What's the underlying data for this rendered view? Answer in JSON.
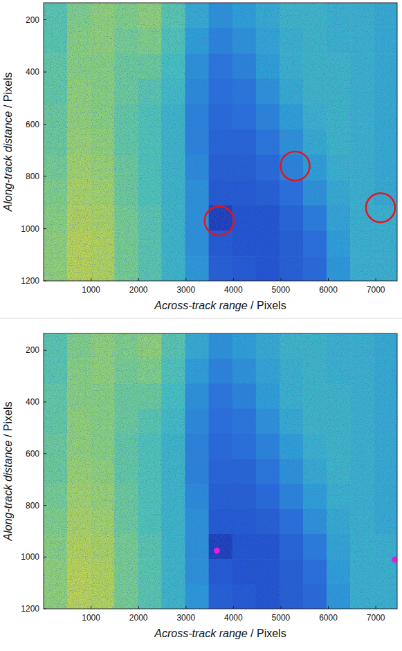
{
  "chart_data": [
    {
      "type": "heatmap",
      "x_label": "Across-track range / Pixels",
      "y_label": "Along-track distance / Pixels",
      "xlim": [
        0,
        7450
      ],
      "ylim": [
        135,
        1200
      ],
      "xticks": [
        1000,
        2000,
        3000,
        4000,
        5000,
        6000,
        7000
      ],
      "yticks": [
        200,
        400,
        600,
        800,
        1000,
        1200
      ],
      "x_edges": [
        0,
        497,
        994,
        1491,
        1988,
        2485,
        2982,
        3479,
        3976,
        4473,
        4970,
        5467,
        5964,
        6461,
        6958,
        7450
      ],
      "y_edges": [
        135,
        232,
        329,
        426,
        523,
        620,
        717,
        814,
        911,
        1008,
        1105,
        1200
      ],
      "color_range": [
        0.2,
        0.7
      ],
      "cells": [
        [
          0.5,
          0.54,
          0.56,
          0.54,
          0.56,
          0.5,
          0.44,
          0.4,
          0.42,
          0.44,
          0.46,
          0.46,
          0.45,
          0.45,
          0.44
        ],
        [
          0.5,
          0.55,
          0.56,
          0.53,
          0.54,
          0.49,
          0.42,
          0.38,
          0.4,
          0.43,
          0.45,
          0.46,
          0.45,
          0.45,
          0.44
        ],
        [
          0.51,
          0.55,
          0.55,
          0.52,
          0.52,
          0.48,
          0.4,
          0.36,
          0.38,
          0.42,
          0.45,
          0.46,
          0.46,
          0.45,
          0.44
        ],
        [
          0.51,
          0.56,
          0.55,
          0.52,
          0.5,
          0.47,
          0.39,
          0.35,
          0.36,
          0.4,
          0.44,
          0.46,
          0.46,
          0.45,
          0.44
        ],
        [
          0.52,
          0.56,
          0.55,
          0.51,
          0.49,
          0.46,
          0.38,
          0.34,
          0.35,
          0.38,
          0.42,
          0.45,
          0.46,
          0.45,
          0.44
        ],
        [
          0.52,
          0.57,
          0.56,
          0.51,
          0.49,
          0.46,
          0.38,
          0.33,
          0.33,
          0.36,
          0.4,
          0.44,
          0.46,
          0.45,
          0.44
        ],
        [
          0.53,
          0.58,
          0.57,
          0.52,
          0.49,
          0.46,
          0.39,
          0.32,
          0.32,
          0.34,
          0.38,
          0.42,
          0.45,
          0.45,
          0.44
        ],
        [
          0.54,
          0.59,
          0.58,
          0.52,
          0.49,
          0.46,
          0.4,
          0.31,
          0.31,
          0.32,
          0.35,
          0.4,
          0.44,
          0.45,
          0.44
        ],
        [
          0.55,
          0.6,
          0.59,
          0.53,
          0.5,
          0.46,
          0.4,
          0.26,
          0.3,
          0.3,
          0.33,
          0.37,
          0.43,
          0.45,
          0.45
        ],
        [
          0.56,
          0.61,
          0.6,
          0.53,
          0.5,
          0.46,
          0.4,
          0.31,
          0.3,
          0.3,
          0.32,
          0.35,
          0.42,
          0.45,
          0.45
        ],
        [
          0.56,
          0.61,
          0.6,
          0.53,
          0.5,
          0.46,
          0.41,
          0.32,
          0.31,
          0.3,
          0.32,
          0.34,
          0.41,
          0.45,
          0.45
        ]
      ],
      "series": [
        {
          "type": "scatter",
          "marker": "ring",
          "color": "#e8141c",
          "x": [
            3700,
            5300,
            7100
          ],
          "values": [
            970,
            760,
            920
          ]
        }
      ]
    },
    {
      "type": "heatmap",
      "x_label": "Across-track range / Pixels",
      "y_label": "Along-track distance / Pixels",
      "xlim": [
        0,
        7450
      ],
      "ylim": [
        135,
        1200
      ],
      "xticks": [
        1000,
        2000,
        3000,
        4000,
        5000,
        6000,
        7000
      ],
      "yticks": [
        200,
        400,
        600,
        800,
        1000,
        1200
      ],
      "x_edges": [
        0,
        497,
        994,
        1491,
        1988,
        2485,
        2982,
        3479,
        3976,
        4473,
        4970,
        5467,
        5964,
        6461,
        6958,
        7450
      ],
      "y_edges": [
        135,
        232,
        329,
        426,
        523,
        620,
        717,
        814,
        911,
        1008,
        1105,
        1200
      ],
      "color_range": [
        0.2,
        0.7
      ],
      "cells": [
        [
          0.5,
          0.54,
          0.56,
          0.54,
          0.56,
          0.5,
          0.44,
          0.4,
          0.42,
          0.44,
          0.46,
          0.46,
          0.45,
          0.45,
          0.44
        ],
        [
          0.5,
          0.55,
          0.56,
          0.53,
          0.54,
          0.49,
          0.42,
          0.38,
          0.4,
          0.43,
          0.45,
          0.46,
          0.45,
          0.45,
          0.44
        ],
        [
          0.51,
          0.55,
          0.55,
          0.52,
          0.52,
          0.48,
          0.4,
          0.36,
          0.38,
          0.42,
          0.45,
          0.46,
          0.46,
          0.45,
          0.44
        ],
        [
          0.51,
          0.56,
          0.55,
          0.52,
          0.5,
          0.47,
          0.39,
          0.35,
          0.36,
          0.4,
          0.44,
          0.46,
          0.46,
          0.45,
          0.44
        ],
        [
          0.52,
          0.56,
          0.55,
          0.51,
          0.49,
          0.46,
          0.38,
          0.34,
          0.35,
          0.38,
          0.42,
          0.45,
          0.46,
          0.45,
          0.44
        ],
        [
          0.52,
          0.57,
          0.56,
          0.51,
          0.49,
          0.46,
          0.38,
          0.33,
          0.33,
          0.36,
          0.4,
          0.44,
          0.46,
          0.45,
          0.44
        ],
        [
          0.53,
          0.58,
          0.57,
          0.52,
          0.49,
          0.46,
          0.39,
          0.32,
          0.32,
          0.34,
          0.38,
          0.42,
          0.45,
          0.45,
          0.44
        ],
        [
          0.54,
          0.59,
          0.58,
          0.52,
          0.49,
          0.46,
          0.4,
          0.31,
          0.31,
          0.32,
          0.35,
          0.4,
          0.44,
          0.45,
          0.44
        ],
        [
          0.55,
          0.6,
          0.59,
          0.53,
          0.5,
          0.46,
          0.4,
          0.26,
          0.3,
          0.3,
          0.33,
          0.37,
          0.43,
          0.45,
          0.45
        ],
        [
          0.56,
          0.61,
          0.6,
          0.53,
          0.5,
          0.46,
          0.4,
          0.31,
          0.3,
          0.3,
          0.32,
          0.35,
          0.42,
          0.45,
          0.45
        ],
        [
          0.56,
          0.61,
          0.6,
          0.53,
          0.5,
          0.46,
          0.41,
          0.32,
          0.31,
          0.3,
          0.32,
          0.34,
          0.41,
          0.45,
          0.45
        ]
      ],
      "series": [
        {
          "type": "scatter",
          "marker": "dot",
          "color": "#e020e0",
          "x": [
            3650,
            7400
          ],
          "values": [
            975,
            1010
          ]
        }
      ]
    }
  ]
}
